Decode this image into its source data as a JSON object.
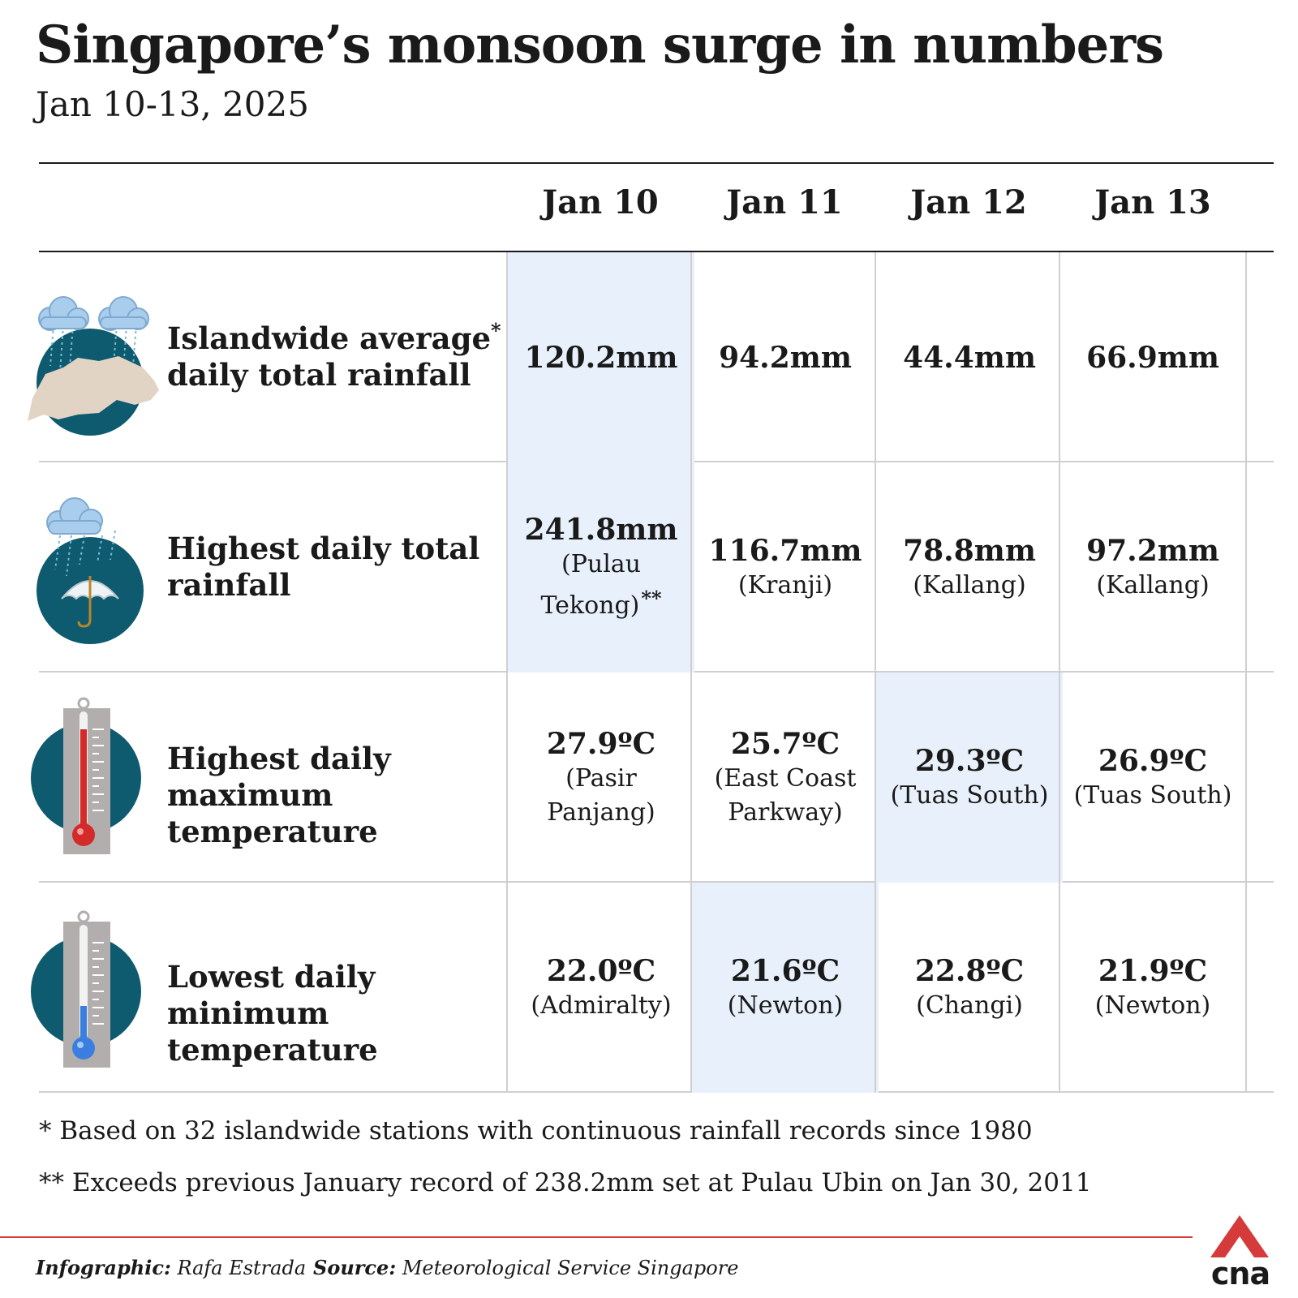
{
  "title": "Singapore’s monsoon surge in numbers",
  "subtitle": "Jan 10-13, 2025",
  "days": [
    "Jan 10",
    "Jan 11",
    "Jan 12",
    "Jan 13"
  ],
  "rows": [
    {
      "label_line1": "Islandwide average",
      "label_star": "*",
      "label_line2": "daily total rainfall",
      "icon": "rain-cloud-map-icon",
      "cells": [
        {
          "value": "120.2mm",
          "location": "",
          "highlight": true
        },
        {
          "value": "94.2mm",
          "location": "",
          "highlight": false
        },
        {
          "value": "44.4mm",
          "location": "",
          "highlight": false
        },
        {
          "value": "66.9mm",
          "location": "",
          "highlight": false
        }
      ]
    },
    {
      "label_line1": "Highest daily total",
      "label_star": "",
      "label_line2": "rainfall",
      "icon": "umbrella-rain-icon",
      "cells": [
        {
          "value": "241.8mm",
          "location": "(Pulau Tekong)",
          "marker": "**",
          "highlight": true
        },
        {
          "value": "116.7mm",
          "location": "(Kranji)",
          "highlight": false
        },
        {
          "value": "78.8mm",
          "location": "(Kallang)",
          "highlight": false
        },
        {
          "value": "97.2mm",
          "location": "(Kallang)",
          "highlight": false
        }
      ]
    },
    {
      "label_line1": "Highest daily",
      "label_star": "",
      "label_line2": "maximum temperature",
      "icon": "thermometer-hot-icon",
      "cells": [
        {
          "value": "27.9ºC",
          "location": "(Pasir Panjang)",
          "highlight": false
        },
        {
          "value": "25.7ºC",
          "location": "(East Coast Parkway)",
          "highlight": false
        },
        {
          "value": "29.3ºC",
          "location": "(Tuas South)",
          "highlight": true
        },
        {
          "value": "26.9ºC",
          "location": "(Tuas South)",
          "highlight": false
        }
      ]
    },
    {
      "label_line1": "Lowest daily",
      "label_star": "",
      "label_line2": "minimum temperature",
      "icon": "thermometer-cold-icon",
      "cells": [
        {
          "value": "22.0ºC",
          "location": "(Admiralty)",
          "highlight": false
        },
        {
          "value": "21.6ºC",
          "location": "(Newton)",
          "highlight": true
        },
        {
          "value": "22.8ºC",
          "location": "(Changi)",
          "highlight": false
        },
        {
          "value": "21.9ºC",
          "location": "(Newton)",
          "highlight": false
        }
      ]
    }
  ],
  "notes": [
    "* Based on 32 islandwide stations with continuous rainfall records since 1980",
    "** Exceeds previous January record of 238.2mm set at Pulau Ubin on Jan 30, 2011"
  ],
  "credits": {
    "infographic_label": "Infographic:",
    "infographic_name": "Rafa Estrada",
    "source_label": "Source:",
    "source_name": "Meteorological Service Singapore"
  },
  "logo_text": "cna",
  "colors": {
    "highlight": "#e8f1fb",
    "icon_circle": "#0e5a6e",
    "accent_red": "#d63b3b",
    "thermometer_hot": "#d42a2a",
    "thermometer_cold": "#3a7fe0"
  }
}
